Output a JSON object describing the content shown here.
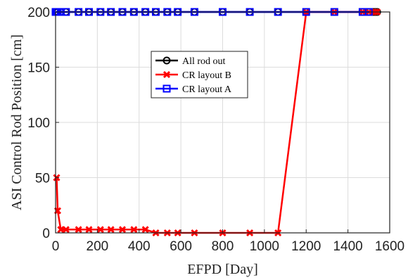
{
  "chart_data": {
    "type": "line",
    "xlabel": "EFPD [Day]",
    "ylabel": "ASI Control Rod Position [cm]",
    "xlim": [
      0,
      1600
    ],
    "ylim": [
      0,
      200
    ],
    "xticks": [
      0,
      200,
      400,
      600,
      800,
      1000,
      1200,
      1400,
      1600
    ],
    "yticks": [
      0,
      50,
      100,
      150,
      200
    ],
    "grid": true,
    "legend_position": "upper-center",
    "series": [
      {
        "name": "All rod out",
        "color": "#000000",
        "marker": "circle",
        "points": [
          [
            0,
            200
          ],
          [
            5,
            200
          ],
          [
            10,
            200
          ],
          [
            25,
            200
          ],
          [
            50,
            200
          ],
          [
            110,
            200
          ],
          [
            160,
            200
          ],
          [
            215,
            200
          ],
          [
            265,
            200
          ],
          [
            320,
            200
          ],
          [
            375,
            200
          ],
          [
            430,
            200
          ],
          [
            480,
            200
          ],
          [
            535,
            200
          ],
          [
            585,
            200
          ],
          [
            665,
            200
          ],
          [
            800,
            200
          ],
          [
            930,
            200
          ],
          [
            1065,
            200
          ],
          [
            1200,
            200
          ],
          [
            1335,
            200
          ],
          [
            1470,
            200
          ],
          [
            1500,
            200
          ],
          [
            1520,
            200
          ],
          [
            1530,
            200
          ],
          [
            1540,
            200
          ]
        ]
      },
      {
        "name": "CR layout B",
        "color": "#ff0000",
        "marker": "x",
        "points": [
          [
            5,
            50
          ],
          [
            10,
            20
          ],
          [
            25,
            3
          ],
          [
            50,
            3
          ],
          [
            110,
            3
          ],
          [
            160,
            3
          ],
          [
            215,
            3
          ],
          [
            265,
            3
          ],
          [
            320,
            3
          ],
          [
            375,
            3
          ],
          [
            430,
            3
          ],
          [
            480,
            0
          ],
          [
            535,
            0
          ],
          [
            585,
            0
          ],
          [
            665,
            0
          ],
          [
            800,
            0
          ],
          [
            930,
            0
          ],
          [
            1065,
            0
          ],
          [
            1200,
            200
          ],
          [
            1335,
            200
          ],
          [
            1470,
            200
          ],
          [
            1500,
            200
          ],
          [
            1520,
            200
          ],
          [
            1530,
            200
          ],
          [
            1540,
            200
          ]
        ]
      },
      {
        "name": "CR layout A",
        "color": "#0000ff",
        "marker": "square",
        "points": [
          [
            0,
            200
          ],
          [
            5,
            200
          ],
          [
            10,
            200
          ],
          [
            25,
            200
          ],
          [
            50,
            200
          ],
          [
            110,
            200
          ],
          [
            160,
            200
          ],
          [
            215,
            200
          ],
          [
            265,
            200
          ],
          [
            320,
            200
          ],
          [
            375,
            200
          ],
          [
            430,
            200
          ],
          [
            480,
            200
          ],
          [
            535,
            200
          ],
          [
            585,
            200
          ],
          [
            665,
            200
          ],
          [
            800,
            200
          ],
          [
            930,
            200
          ],
          [
            1065,
            200
          ],
          [
            1200,
            200
          ],
          [
            1335,
            200
          ],
          [
            1470,
            200
          ],
          [
            1500,
            200
          ]
        ]
      }
    ]
  }
}
